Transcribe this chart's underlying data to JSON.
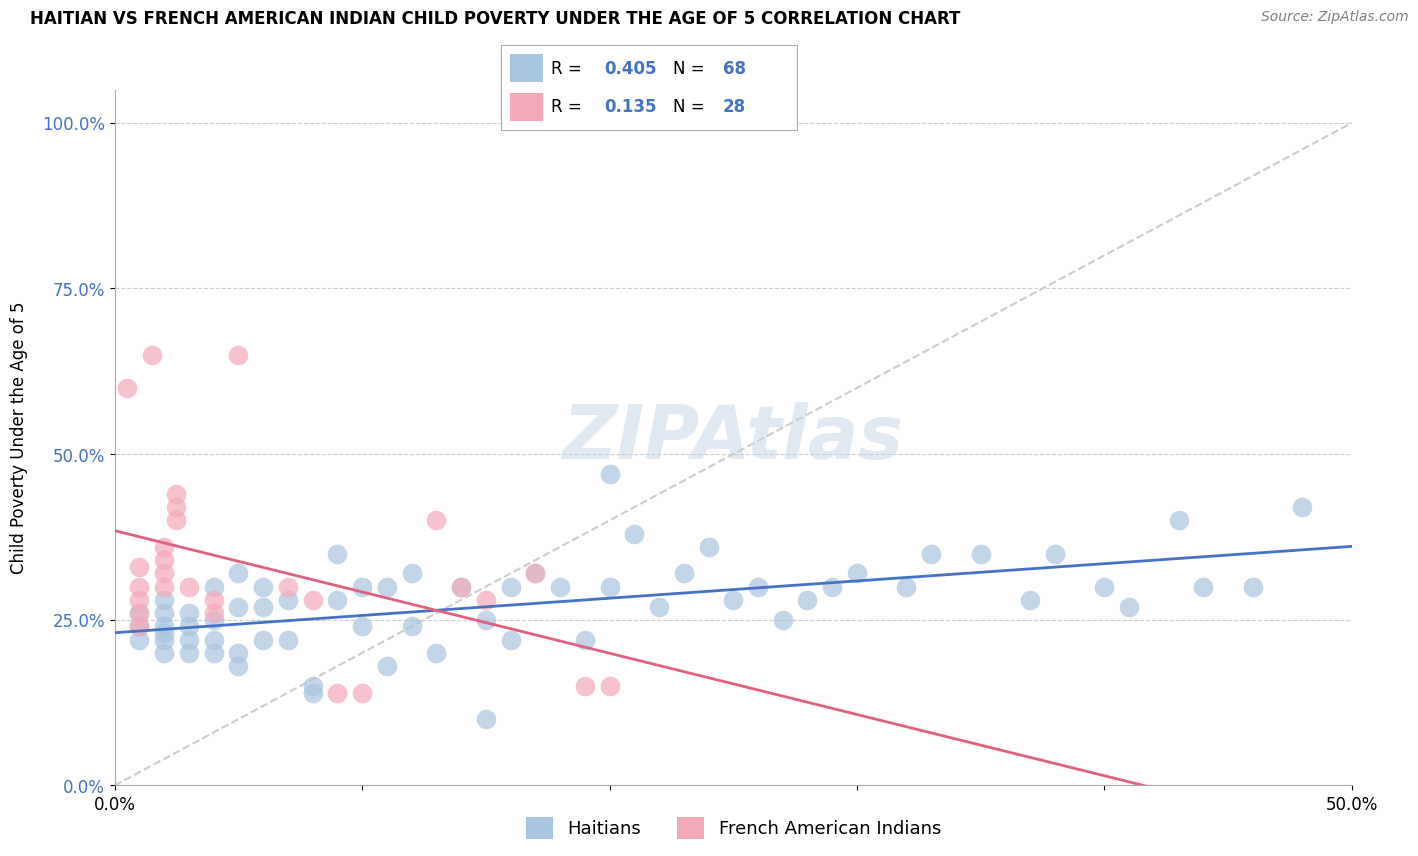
{
  "title": "HAITIAN VS FRENCH AMERICAN INDIAN CHILD POVERTY UNDER THE AGE OF 5 CORRELATION CHART",
  "source": "Source: ZipAtlas.com",
  "ylabel": "Child Poverty Under the Age of 5",
  "xlabel": "",
  "xlim": [
    0.0,
    0.5
  ],
  "ylim": [
    0.0,
    1.05
  ],
  "ytick_vals": [
    0.0,
    0.25,
    0.5,
    0.75,
    1.0
  ],
  "ytick_labels": [
    "0.0%",
    "25.0%",
    "50.0%",
    "75.0%",
    "100.0%"
  ],
  "xtick_vals": [
    0.0,
    0.1,
    0.2,
    0.3,
    0.4,
    0.5
  ],
  "xtick_labels": [
    "0.0%",
    "",
    "",
    "",
    "",
    "50.0%"
  ],
  "legend1_label": "Haitians",
  "legend2_label": "French American Indians",
  "R1": 0.405,
  "N1": 68,
  "R2": 0.135,
  "N2": 28,
  "haitian_color": "#a8c4e0",
  "french_color": "#f4a9b8",
  "haitian_line_color": "#4472c4",
  "french_line_color": "#e06080",
  "haitian_x": [
    0.01,
    0.01,
    0.01,
    0.02,
    0.02,
    0.02,
    0.02,
    0.02,
    0.02,
    0.03,
    0.03,
    0.03,
    0.03,
    0.04,
    0.04,
    0.04,
    0.04,
    0.05,
    0.05,
    0.05,
    0.05,
    0.06,
    0.06,
    0.06,
    0.07,
    0.07,
    0.08,
    0.08,
    0.09,
    0.09,
    0.1,
    0.1,
    0.11,
    0.11,
    0.12,
    0.12,
    0.13,
    0.14,
    0.15,
    0.15,
    0.16,
    0.16,
    0.17,
    0.18,
    0.19,
    0.2,
    0.2,
    0.21,
    0.22,
    0.23,
    0.24,
    0.25,
    0.26,
    0.27,
    0.28,
    0.29,
    0.3,
    0.32,
    0.33,
    0.35,
    0.37,
    0.38,
    0.4,
    0.41,
    0.43,
    0.44,
    0.46,
    0.48
  ],
  "haitian_y": [
    0.22,
    0.24,
    0.26,
    0.2,
    0.22,
    0.24,
    0.26,
    0.28,
    0.23,
    0.2,
    0.22,
    0.24,
    0.26,
    0.2,
    0.22,
    0.3,
    0.25,
    0.18,
    0.2,
    0.27,
    0.32,
    0.22,
    0.27,
    0.3,
    0.22,
    0.28,
    0.14,
    0.15,
    0.28,
    0.35,
    0.24,
    0.3,
    0.18,
    0.3,
    0.24,
    0.32,
    0.2,
    0.3,
    0.25,
    0.1,
    0.3,
    0.22,
    0.32,
    0.3,
    0.22,
    0.47,
    0.3,
    0.38,
    0.27,
    0.32,
    0.36,
    0.28,
    0.3,
    0.25,
    0.28,
    0.3,
    0.32,
    0.3,
    0.35,
    0.35,
    0.28,
    0.35,
    0.3,
    0.27,
    0.4,
    0.3,
    0.3,
    0.42
  ],
  "french_x": [
    0.005,
    0.01,
    0.01,
    0.01,
    0.01,
    0.01,
    0.015,
    0.02,
    0.02,
    0.02,
    0.02,
    0.025,
    0.025,
    0.025,
    0.03,
    0.04,
    0.04,
    0.05,
    0.07,
    0.08,
    0.09,
    0.1,
    0.13,
    0.14,
    0.15,
    0.17,
    0.19,
    0.2
  ],
  "french_y": [
    0.6,
    0.33,
    0.3,
    0.28,
    0.26,
    0.24,
    0.65,
    0.3,
    0.32,
    0.34,
    0.36,
    0.4,
    0.42,
    0.44,
    0.3,
    0.28,
    0.26,
    0.65,
    0.3,
    0.28,
    0.14,
    0.14,
    0.4,
    0.3,
    0.28,
    0.32,
    0.15,
    0.15
  ]
}
